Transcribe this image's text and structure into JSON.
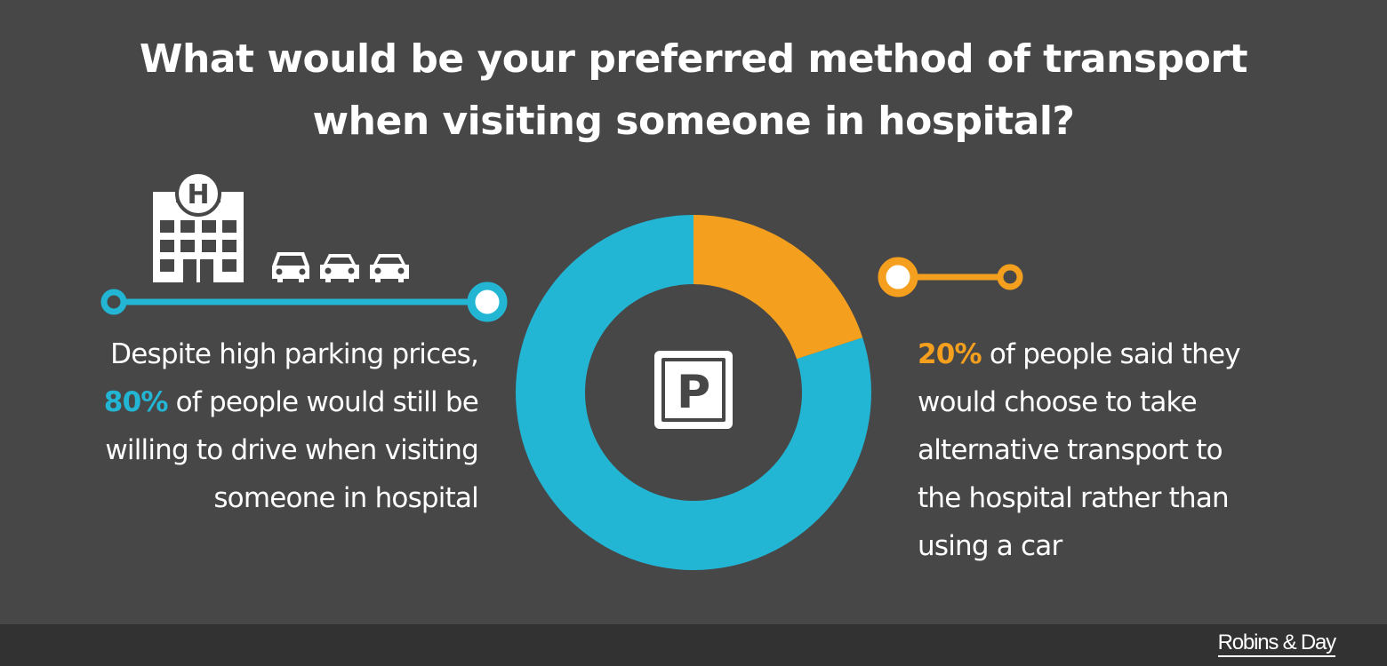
{
  "title": {
    "line1": "What would be your preferred method of transport",
    "line2": "when visiting someone in hospital?"
  },
  "left_text": {
    "line1": "Despite high parking prices,",
    "highlight": "80%",
    "line2_rest": " of people would still be",
    "line3": "willing to drive when visiting",
    "line4": "someone in hospital"
  },
  "right_text": {
    "highlight": "20%",
    "line1_rest": " of people said they",
    "line2": "would choose to take",
    "line3": "alternative transport to",
    "line4": "the hospital rather than",
    "line5": "using a car"
  },
  "icons": {
    "hospital": "hospital-building-icon",
    "cars": [
      "car-icon",
      "car-icon",
      "car-icon"
    ],
    "center": "parking-sign-icon",
    "hospital_letter": "H",
    "parking_letter": "P"
  },
  "colors": {
    "background": "#474747",
    "drive": "#22b6d4",
    "alternative": "#f4a01e",
    "footer": "#323232"
  },
  "brand": "Robins & Day",
  "chart_data": {
    "type": "pie",
    "variant": "donut",
    "slices": [
      {
        "label": "Drive",
        "value": 80,
        "color": "#22b6d4"
      },
      {
        "label": "Alternative transport",
        "value": 20,
        "color": "#f4a01e"
      }
    ]
  }
}
